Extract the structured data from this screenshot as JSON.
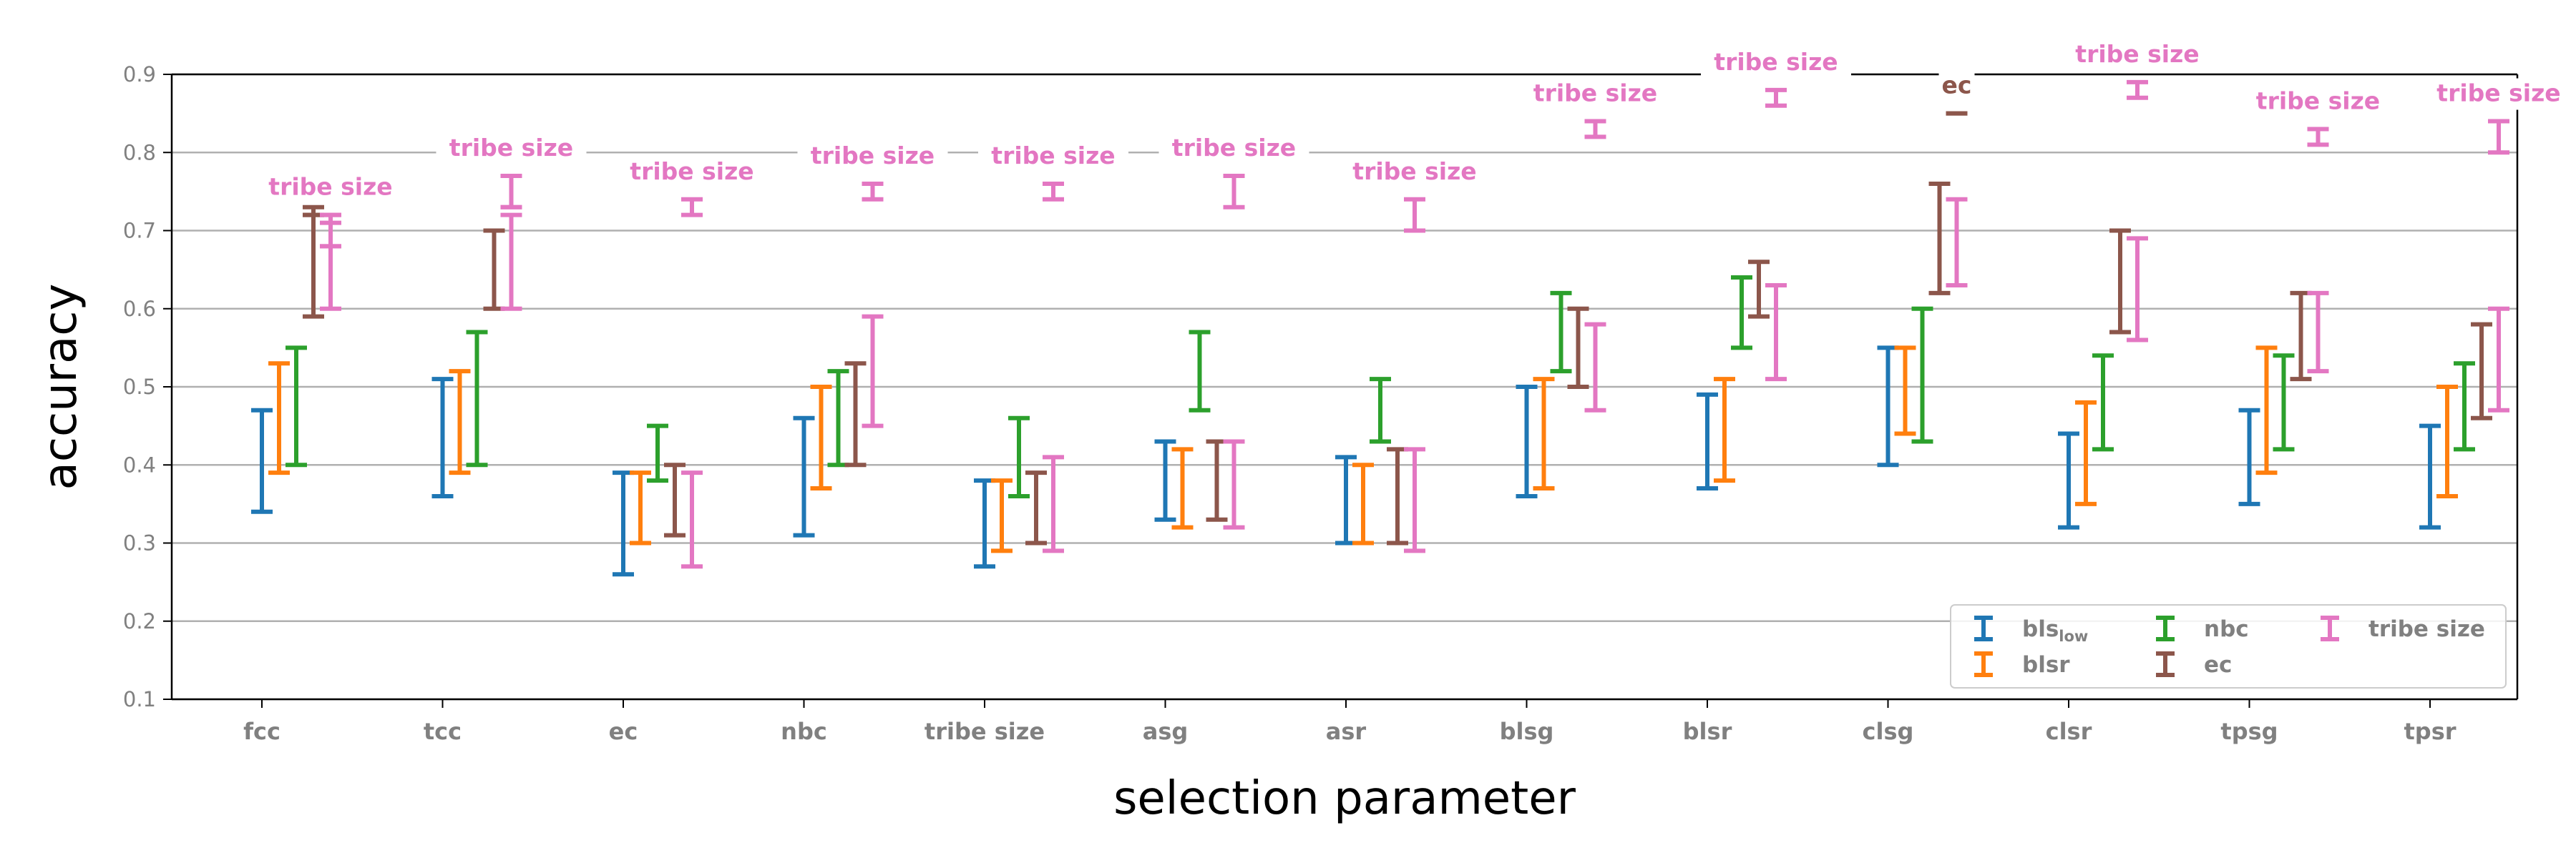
{
  "chart_data": {
    "type": "errorbar",
    "xlabel": "selection parameter",
    "ylabel": "accuracy",
    "ylim": [
      0.1,
      0.9
    ],
    "yticks": [
      "0.1",
      "0.2",
      "0.3",
      "0.4",
      "0.5",
      "0.6",
      "0.7",
      "0.8",
      "0.9"
    ],
    "grid": "horizontal",
    "legend_position": "bottom-right",
    "categories": [
      "fcc",
      "tcc",
      "ec",
      "nbc",
      "tribe size",
      "asg",
      "asr",
      "blsg",
      "blsr",
      "clsg",
      "clsr",
      "tpsg",
      "tpsr"
    ],
    "series": [
      {
        "name": "bls",
        "name_subscript": "low",
        "color": "#1f77b4",
        "intervals": [
          [
            0.34,
            0.47
          ],
          [
            0.36,
            0.51
          ],
          [
            0.26,
            0.39
          ],
          [
            0.31,
            0.46
          ],
          [
            0.27,
            0.38
          ],
          [
            0.33,
            0.43
          ],
          [
            0.3,
            0.41
          ],
          [
            0.36,
            0.5
          ],
          [
            0.37,
            0.49
          ],
          [
            0.4,
            0.55
          ],
          [
            0.32,
            0.44
          ],
          [
            0.35,
            0.47
          ],
          [
            0.32,
            0.45
          ]
        ]
      },
      {
        "name": "blsr",
        "color": "#ff7f0e",
        "intervals": [
          [
            0.39,
            0.53
          ],
          [
            0.39,
            0.52
          ],
          [
            0.3,
            0.39
          ],
          [
            0.37,
            0.5
          ],
          [
            0.29,
            0.38
          ],
          [
            0.32,
            0.42
          ],
          [
            0.3,
            0.4
          ],
          [
            0.37,
            0.51
          ],
          [
            0.38,
            0.51
          ],
          [
            0.44,
            0.55
          ],
          [
            0.35,
            0.48
          ],
          [
            0.39,
            0.55
          ],
          [
            0.36,
            0.5
          ]
        ]
      },
      {
        "name": "nbc",
        "color": "#2ca02c",
        "intervals": [
          [
            0.4,
            0.55
          ],
          [
            0.4,
            0.57
          ],
          [
            0.38,
            0.45
          ],
          [
            0.4,
            0.52
          ],
          [
            0.36,
            0.46
          ],
          [
            0.47,
            0.57
          ],
          [
            0.43,
            0.51
          ],
          [
            0.52,
            0.62
          ],
          [
            0.55,
            0.64
          ],
          [
            0.43,
            0.6
          ],
          [
            0.42,
            0.54
          ],
          [
            0.42,
            0.54
          ],
          [
            0.42,
            0.53
          ]
        ]
      },
      {
        "name": "ec",
        "color": "#8c564b",
        "intervals": [
          [
            0.59,
            0.73
          ],
          [
            0.6,
            0.7
          ],
          [
            0.31,
            0.4
          ],
          [
            0.4,
            0.53
          ],
          [
            0.3,
            0.39
          ],
          [
            0.33,
            0.43
          ],
          [
            0.3,
            0.42
          ],
          [
            0.5,
            0.6
          ],
          [
            0.59,
            0.66
          ],
          [
            0.62,
            0.76
          ],
          [
            0.57,
            0.7
          ],
          [
            0.51,
            0.62
          ],
          [
            0.46,
            0.58
          ]
        ]
      },
      {
        "name": "tribe size",
        "color": "#e377c2",
        "intervals": [
          [
            0.6,
            0.71
          ],
          [
            0.6,
            0.72
          ],
          [
            0.27,
            0.39
          ],
          [
            0.45,
            0.59
          ],
          [
            0.29,
            0.41
          ],
          [
            0.32,
            0.43
          ],
          [
            0.29,
            0.42
          ],
          [
            0.47,
            0.58
          ],
          [
            0.51,
            0.63
          ],
          [
            0.63,
            0.74
          ],
          [
            0.56,
            0.69
          ],
          [
            0.52,
            0.62
          ],
          [
            0.47,
            0.6
          ]
        ]
      }
    ],
    "secondary_intervals": [
      {
        "series": "ec",
        "category": "fcc",
        "interval": [
          0.72,
          0.72
        ]
      },
      {
        "series": "tribe size",
        "category": "fcc",
        "interval": [
          0.68,
          0.72
        ]
      },
      {
        "series": "tribe size",
        "category": "tcc",
        "interval": [
          0.73,
          0.77
        ]
      }
    ],
    "top_intervals": [
      {
        "category": "fcc",
        "label": "tribe size",
        "color": "#e377c2",
        "interval": [
          0.68,
          0.72
        ]
      },
      {
        "category": "tcc",
        "label": "tribe size",
        "color": "#e377c2",
        "interval": [
          0.73,
          0.77
        ]
      },
      {
        "category": "ec",
        "label": "tribe size",
        "color": "#e377c2",
        "interval": [
          0.72,
          0.74
        ]
      },
      {
        "category": "nbc",
        "label": "tribe size",
        "color": "#e377c2",
        "interval": [
          0.74,
          0.76
        ]
      },
      {
        "category": "tribe size",
        "label": "tribe size",
        "color": "#e377c2",
        "interval": [
          0.74,
          0.76
        ]
      },
      {
        "category": "asg",
        "label": "tribe size",
        "color": "#e377c2",
        "interval": [
          0.73,
          0.77
        ]
      },
      {
        "category": "asr",
        "label": "tribe size",
        "color": "#e377c2",
        "interval": [
          0.7,
          0.74
        ]
      },
      {
        "category": "blsg",
        "label": "tribe size",
        "color": "#e377c2",
        "interval": [
          0.82,
          0.84
        ]
      },
      {
        "category": "blsr",
        "label": "tribe size",
        "color": "#e377c2",
        "interval": [
          0.86,
          0.88
        ]
      },
      {
        "category": "clsg",
        "label": "ec",
        "color": "#8c564b",
        "interval": [
          0.85,
          0.85
        ]
      },
      {
        "category": "clsr",
        "label": "tribe size",
        "color": "#e377c2",
        "interval": [
          0.87,
          0.89
        ]
      },
      {
        "category": "tpsg",
        "label": "tribe size",
        "color": "#e377c2",
        "interval": [
          0.81,
          0.83
        ]
      },
      {
        "category": "tpsr",
        "label": "tribe size",
        "color": "#e377c2",
        "interval": [
          0.8,
          0.84
        ]
      }
    ]
  }
}
